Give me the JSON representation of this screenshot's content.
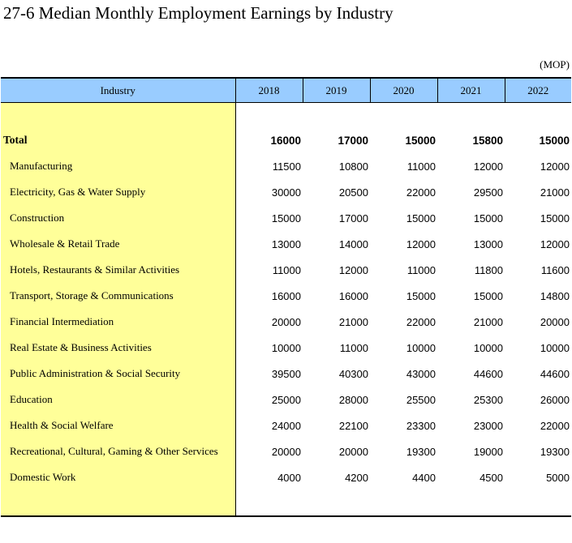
{
  "title": "27-6  Median Monthly Employment Earnings by Industry",
  "unit": "(MOP)",
  "table": {
    "headers": [
      "Industry",
      "2018",
      "2019",
      "2020",
      "2021",
      "2022"
    ],
    "total": {
      "label": "Total",
      "values": [
        "16000",
        "17000",
        "15000",
        "15800",
        "15000"
      ]
    },
    "rows": [
      {
        "label": "Manufacturing",
        "values": [
          "11500",
          "10800",
          "11000",
          "12000",
          "12000"
        ]
      },
      {
        "label": "Electricity, Gas & Water Supply",
        "values": [
          "30000",
          "20500",
          "22000",
          "29500",
          "21000"
        ]
      },
      {
        "label": "Construction",
        "values": [
          "15000",
          "17000",
          "15000",
          "15000",
          "15000"
        ]
      },
      {
        "label": "Wholesale & Retail Trade",
        "values": [
          "13000",
          "14000",
          "12000",
          "13000",
          "12000"
        ]
      },
      {
        "label": "Hotels, Restaurants & Similar Activities",
        "values": [
          "11000",
          "12000",
          "11000",
          "11800",
          "11600"
        ]
      },
      {
        "label": "Transport, Storage & Communications",
        "values": [
          "16000",
          "16000",
          "15000",
          "15000",
          "14800"
        ]
      },
      {
        "label": "Financial Intermediation",
        "values": [
          "20000",
          "21000",
          "22000",
          "21000",
          "20000"
        ]
      },
      {
        "label": "Real Estate & Business Activities",
        "values": [
          "10000",
          "11000",
          "10000",
          "10000",
          "10000"
        ]
      },
      {
        "label": "Public Administration & Social Security",
        "values": [
          "39500",
          "40300",
          "43000",
          "44600",
          "44600"
        ]
      },
      {
        "label": "Education",
        "values": [
          "25000",
          "28000",
          "25500",
          "25300",
          "26000"
        ]
      },
      {
        "label": "Health & Social Welfare",
        "values": [
          "24000",
          "22100",
          "23300",
          "23000",
          "22000"
        ]
      },
      {
        "label": "Recreational, Cultural, Gaming & Other Services",
        "values": [
          "20000",
          "20000",
          "19300",
          "19000",
          "19300"
        ]
      },
      {
        "label": "Domestic Work",
        "values": [
          "4000",
          "4200",
          "4400",
          "4500",
          "5000"
        ]
      }
    ]
  },
  "colors": {
    "header_background": "#99ccff",
    "label_column_background": "#ffff99"
  }
}
